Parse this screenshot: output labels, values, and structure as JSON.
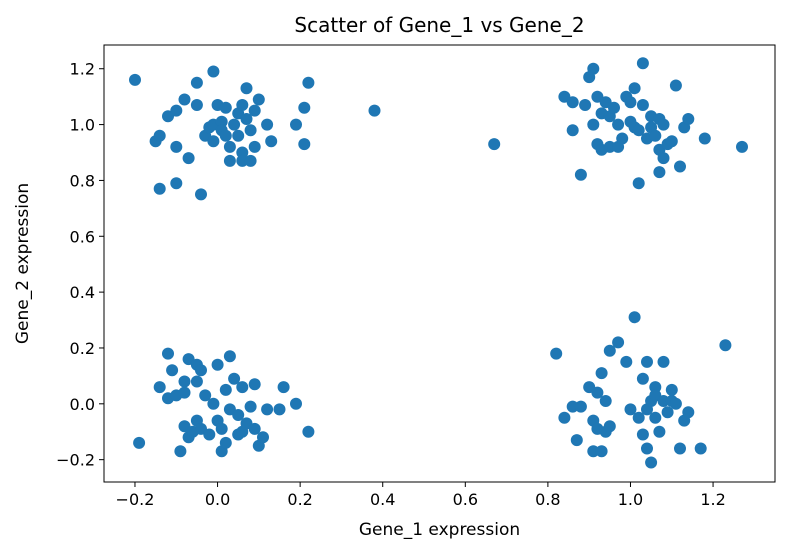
{
  "chart_data": {
    "type": "scatter",
    "title": "Scatter of Gene_1 vs Gene_2",
    "xlabel": "Gene_1 expression",
    "ylabel": "Gene_2 expression",
    "xlim": [
      -0.275,
      1.35
    ],
    "ylim": [
      -0.28,
      1.285
    ],
    "xticks": [
      -0.2,
      0.0,
      0.2,
      0.4,
      0.6,
      0.8,
      1.0,
      1.2
    ],
    "xtick_labels": [
      "−0.2",
      "0.0",
      "0.2",
      "0.4",
      "0.6",
      "0.8",
      "1.0",
      "1.2"
    ],
    "yticks": [
      -0.2,
      0.0,
      0.2,
      0.4,
      0.6,
      0.8,
      1.0,
      1.2
    ],
    "ytick_labels": [
      "−0.2",
      "0.0",
      "0.2",
      "0.4",
      "0.6",
      "0.8",
      "1.0",
      "1.2"
    ],
    "grid": false,
    "legend": "none",
    "marker_color": "#1f77b4",
    "series": [
      {
        "points": [
          [
            -0.2,
            1.16
          ],
          [
            -0.15,
            0.94
          ],
          [
            -0.14,
            0.96
          ],
          [
            -0.14,
            0.77
          ],
          [
            -0.12,
            1.03
          ],
          [
            -0.1,
            1.05
          ],
          [
            -0.1,
            0.92
          ],
          [
            -0.1,
            0.79
          ],
          [
            -0.08,
            1.09
          ],
          [
            -0.07,
            0.88
          ],
          [
            -0.05,
            1.15
          ],
          [
            -0.05,
            1.07
          ],
          [
            -0.04,
            0.75
          ],
          [
            -0.03,
            0.96
          ],
          [
            -0.02,
            0.99
          ],
          [
            -0.01,
            1.0
          ],
          [
            -0.01,
            0.94
          ],
          [
            -0.01,
            1.19
          ],
          [
            0.0,
            1.07
          ],
          [
            0.01,
            1.01
          ],
          [
            0.01,
            0.98
          ],
          [
            0.02,
            1.06
          ],
          [
            0.02,
            0.96
          ],
          [
            0.03,
            0.92
          ],
          [
            0.03,
            0.87
          ],
          [
            0.04,
            1.0
          ],
          [
            0.05,
            0.96
          ],
          [
            0.05,
            1.04
          ],
          [
            0.06,
            1.07
          ],
          [
            0.06,
            0.9
          ],
          [
            0.06,
            0.87
          ],
          [
            0.07,
            1.13
          ],
          [
            0.07,
            1.02
          ],
          [
            0.08,
            0.87
          ],
          [
            0.08,
            0.98
          ],
          [
            0.09,
            0.92
          ],
          [
            0.09,
            1.05
          ],
          [
            0.1,
            1.09
          ],
          [
            0.12,
            1.0
          ],
          [
            0.13,
            0.94
          ],
          [
            0.19,
            1.0
          ],
          [
            0.21,
            1.06
          ],
          [
            0.21,
            0.93
          ],
          [
            0.22,
            1.15
          ],
          [
            0.38,
            1.05
          ],
          [
            0.67,
            0.93
          ],
          [
            0.84,
            1.1
          ],
          [
            0.86,
            0.98
          ],
          [
            0.86,
            1.08
          ],
          [
            0.88,
            0.82
          ],
          [
            0.89,
            1.07
          ],
          [
            0.9,
            1.17
          ],
          [
            0.91,
            1.2
          ],
          [
            0.91,
            1.0
          ],
          [
            0.92,
            1.1
          ],
          [
            0.92,
            0.93
          ],
          [
            0.93,
            1.04
          ],
          [
            0.93,
            0.91
          ],
          [
            0.94,
            1.08
          ],
          [
            0.95,
            1.03
          ],
          [
            0.95,
            0.92
          ],
          [
            0.96,
            1.06
          ],
          [
            0.97,
            1.0
          ],
          [
            0.97,
            0.92
          ],
          [
            0.98,
            0.95
          ],
          [
            0.99,
            1.1
          ],
          [
            1.0,
            1.08
          ],
          [
            1.0,
            1.01
          ],
          [
            1.01,
            1.13
          ],
          [
            1.01,
            0.99
          ],
          [
            1.02,
            0.98
          ],
          [
            1.02,
            0.79
          ],
          [
            1.03,
            1.22
          ],
          [
            1.03,
            1.07
          ],
          [
            1.04,
            0.95
          ],
          [
            1.05,
            1.03
          ],
          [
            1.05,
            0.99
          ],
          [
            1.06,
            0.96
          ],
          [
            1.07,
            0.91
          ],
          [
            1.07,
            0.83
          ],
          [
            1.07,
            1.02
          ],
          [
            1.08,
            0.88
          ],
          [
            1.08,
            1.0
          ],
          [
            1.09,
            0.93
          ],
          [
            1.1,
            0.94
          ],
          [
            1.11,
            1.14
          ],
          [
            1.12,
            0.85
          ],
          [
            1.13,
            0.99
          ],
          [
            1.14,
            1.02
          ],
          [
            1.18,
            0.95
          ],
          [
            1.27,
            0.92
          ],
          [
            -0.19,
            -0.14
          ],
          [
            -0.14,
            0.06
          ],
          [
            -0.12,
            0.18
          ],
          [
            -0.12,
            0.02
          ],
          [
            -0.11,
            0.12
          ],
          [
            -0.1,
            0.03
          ],
          [
            -0.09,
            -0.17
          ],
          [
            -0.08,
            0.04
          ],
          [
            -0.08,
            0.08
          ],
          [
            -0.08,
            -0.08
          ],
          [
            -0.07,
            0.16
          ],
          [
            -0.07,
            -0.12
          ],
          [
            -0.06,
            -0.1
          ],
          [
            -0.05,
            0.14
          ],
          [
            -0.05,
            0.08
          ],
          [
            -0.05,
            -0.06
          ],
          [
            -0.04,
            0.12
          ],
          [
            -0.04,
            -0.09
          ],
          [
            -0.03,
            0.03
          ],
          [
            -0.02,
            -0.11
          ],
          [
            -0.01,
            0.0
          ],
          [
            0.0,
            0.14
          ],
          [
            0.0,
            -0.06
          ],
          [
            0.01,
            -0.09
          ],
          [
            0.01,
            -0.17
          ],
          [
            0.02,
            -0.14
          ],
          [
            0.02,
            0.05
          ],
          [
            0.03,
            0.17
          ],
          [
            0.03,
            -0.02
          ],
          [
            0.04,
            0.09
          ],
          [
            0.05,
            -0.04
          ],
          [
            0.05,
            -0.11
          ],
          [
            0.06,
            0.06
          ],
          [
            0.06,
            -0.1
          ],
          [
            0.07,
            -0.07
          ],
          [
            0.08,
            -0.01
          ],
          [
            0.09,
            -0.09
          ],
          [
            0.09,
            0.07
          ],
          [
            0.1,
            -0.15
          ],
          [
            0.11,
            -0.12
          ],
          [
            0.12,
            -0.02
          ],
          [
            0.15,
            -0.02
          ],
          [
            0.16,
            0.06
          ],
          [
            0.19,
            -0.0
          ],
          [
            0.22,
            -0.1
          ],
          [
            0.82,
            0.18
          ],
          [
            0.84,
            -0.05
          ],
          [
            0.86,
            -0.01
          ],
          [
            0.87,
            -0.13
          ],
          [
            0.88,
            -0.01
          ],
          [
            0.9,
            0.06
          ],
          [
            0.91,
            -0.17
          ],
          [
            0.91,
            -0.06
          ],
          [
            0.92,
            0.04
          ],
          [
            0.92,
            -0.09
          ],
          [
            0.93,
            0.11
          ],
          [
            0.93,
            -0.17
          ],
          [
            0.94,
            -0.1
          ],
          [
            0.94,
            0.01
          ],
          [
            0.95,
            0.19
          ],
          [
            0.95,
            -0.08
          ],
          [
            0.97,
            0.22
          ],
          [
            0.99,
            0.15
          ],
          [
            1.0,
            -0.02
          ],
          [
            1.01,
            0.31
          ],
          [
            1.02,
            -0.05
          ],
          [
            1.03,
            -0.11
          ],
          [
            1.03,
            0.09
          ],
          [
            1.04,
            0.15
          ],
          [
            1.04,
            -0.16
          ],
          [
            1.04,
            -0.02
          ],
          [
            1.05,
            0.01
          ],
          [
            1.05,
            -0.21
          ],
          [
            1.06,
            0.06
          ],
          [
            1.06,
            -0.05
          ],
          [
            1.06,
            0.03
          ],
          [
            1.07,
            -0.1
          ],
          [
            1.08,
            0.15
          ],
          [
            1.08,
            0.01
          ],
          [
            1.09,
            -0.03
          ],
          [
            1.1,
            0.01
          ],
          [
            1.1,
            0.05
          ],
          [
            1.11,
            -0.0
          ],
          [
            1.12,
            -0.16
          ],
          [
            1.13,
            -0.06
          ],
          [
            1.14,
            -0.03
          ],
          [
            1.17,
            -0.16
          ],
          [
            1.23,
            0.21
          ]
        ]
      }
    ]
  }
}
